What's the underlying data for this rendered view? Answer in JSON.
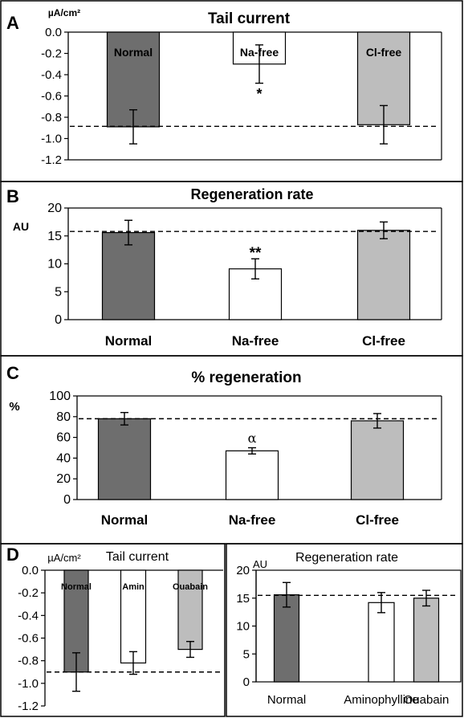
{
  "colors": {
    "normal": "#6e6e6e",
    "na_free": "#ffffff",
    "cl_free": "#bdbdbd",
    "aminophylline": "#ffffff",
    "ouabain": "#bdbdbd",
    "ink": "#000000"
  },
  "chart_data": [
    {
      "panel": "A",
      "type": "bar",
      "title": "Tail current",
      "ylabel": "µA/cm²",
      "ylim": [
        -1.2,
        0.0
      ],
      "yticks": [
        "0.0",
        "-0.2",
        "-0.4",
        "-0.6",
        "-0.8",
        "-1.0",
        "-1.2"
      ],
      "categories": [
        "Normal",
        "Na-free",
        "Cl-free"
      ],
      "values": [
        -0.89,
        -0.3,
        -0.87
      ],
      "errors": [
        0.16,
        0.18,
        0.18
      ],
      "reference_line": -0.885,
      "annotations": [
        "",
        "*",
        ""
      ]
    },
    {
      "panel": "B",
      "type": "bar",
      "title": "Regeneration rate",
      "ylabel": "AU",
      "ylim": [
        0,
        20
      ],
      "yticks": [
        "20",
        "15",
        "10",
        "5",
        "0"
      ],
      "categories": [
        "Normal",
        "Na-free",
        "Cl-free"
      ],
      "values": [
        15.6,
        9.1,
        16.0
      ],
      "errors": [
        2.2,
        1.8,
        1.5
      ],
      "reference_line": 15.8,
      "annotations": [
        "",
        "**",
        ""
      ]
    },
    {
      "panel": "C",
      "type": "bar",
      "title": "% regeneration",
      "ylabel": "%",
      "ylim": [
        0,
        100
      ],
      "yticks": [
        "100",
        "80",
        "60",
        "40",
        "20",
        "0"
      ],
      "categories": [
        "Normal",
        "Na-free",
        "Cl-free"
      ],
      "values": [
        78,
        47,
        76
      ],
      "errors": [
        6,
        3,
        7
      ],
      "reference_line": 78,
      "annotations": [
        "",
        "α",
        ""
      ]
    },
    {
      "panel": "D",
      "type": "bar",
      "title": "Tail current",
      "ylabel": "µA/cm²",
      "ylim": [
        -1.2,
        0.0
      ],
      "yticks": [
        "0.0",
        "-0.2",
        "-0.4",
        "-0.6",
        "-0.8",
        "-1.0",
        "-1.2"
      ],
      "categories": [
        "Normal",
        "Amin",
        "Ouabain"
      ],
      "values": [
        -0.9,
        -0.82,
        -0.7
      ],
      "errors": [
        0.17,
        0.1,
        0.07
      ],
      "reference_line": -0.9
    },
    {
      "type": "bar",
      "title": "Regeneration rate",
      "ylabel": "AU",
      "ylim": [
        0,
        20
      ],
      "yticks": [
        "20",
        "15",
        "10",
        "5",
        "0"
      ],
      "categories": [
        "Normal",
        "Aminophylline",
        "Ouabain"
      ],
      "values": [
        15.6,
        14.2,
        15.0
      ],
      "errors": [
        2.2,
        1.8,
        1.4
      ],
      "reference_line": 15.5
    }
  ]
}
